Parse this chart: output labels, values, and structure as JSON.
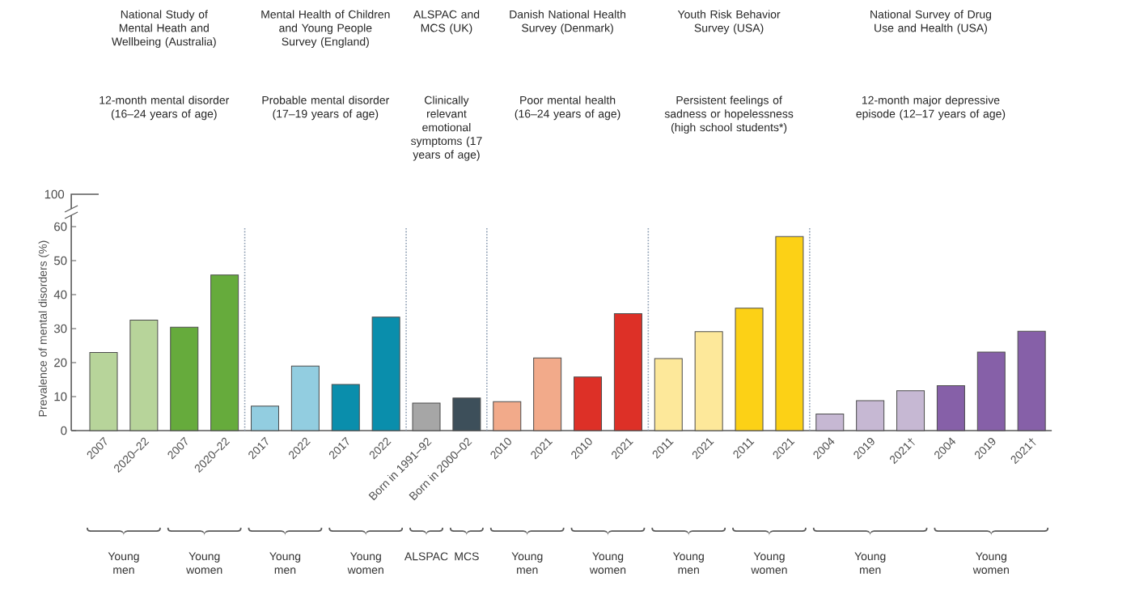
{
  "chart_data": {
    "type": "bar",
    "ylabel": "Prevalence of mental disorders (%)",
    "categories": [
      "2007",
      "2020–22",
      "2007",
      "2020–22",
      "2017",
      "2022",
      "2017",
      "2022",
      "Born in 1991–92",
      "Born in 2000–02",
      "2010",
      "2021",
      "2010",
      "2021",
      "2011",
      "2021",
      "2011",
      "2021",
      "2004",
      "2019",
      "2021†",
      "2004",
      "2019",
      "2021†"
    ],
    "values": [
      23,
      32.5,
      30.4,
      45.8,
      7.2,
      19,
      13.6,
      33.4,
      8.1,
      9.6,
      8.5,
      21.4,
      15.8,
      34.4,
      21.2,
      29.1,
      36,
      57.1,
      4.9,
      8.8,
      11.7,
      13.2,
      23.1,
      29.2
    ],
    "colors": [
      "#b7d49a",
      "#b7d49a",
      "#66ab3c",
      "#66ab3c",
      "#92cde0",
      "#92cde0",
      "#0a8eac",
      "#0a8eac",
      "#a6a6a6",
      "#3d4f5a",
      "#f2aa8a",
      "#f2aa8a",
      "#dd3027",
      "#dd3027",
      "#fde89a",
      "#fde89a",
      "#fcd116",
      "#fcd116",
      "#c6b8d3",
      "#c6b8d3",
      "#c6b8d3",
      "#8660a8",
      "#8660a8",
      "#8660a8"
    ],
    "ylim": [
      0,
      60
    ],
    "yticks": [
      0,
      10,
      20,
      30,
      40,
      50,
      60
    ],
    "annotations": [
      "100",
      "National Study of Mental Heath and Wellbeing (Australia)",
      "Mental Health of Children and Young People Survey (England)",
      "ALSPAC and MCS (UK)",
      "Danish National Health Survey (Denmark)",
      "Youth Risk Behavior Survey (USA)",
      "National Survey of Drug Use and Health (USA)",
      "12-month mental disorder (16–24 years of age)",
      "Probable mental disorder (17–19 years of age)",
      "Clinically relevant emotional symptoms (17 years of age)",
      "Poor mental health (16–24 years of age)",
      "Persistent feelings of sadness or hopelessness (high school students*)",
      "12-month major depressive episode (12–17 years of age)",
      "Young men",
      "Young women",
      "Young men",
      "Young women",
      "ALSPAC",
      "MCS",
      "Young men",
      "Young women",
      "Young men",
      "Young women",
      "Young men",
      "Young women"
    ]
  }
}
